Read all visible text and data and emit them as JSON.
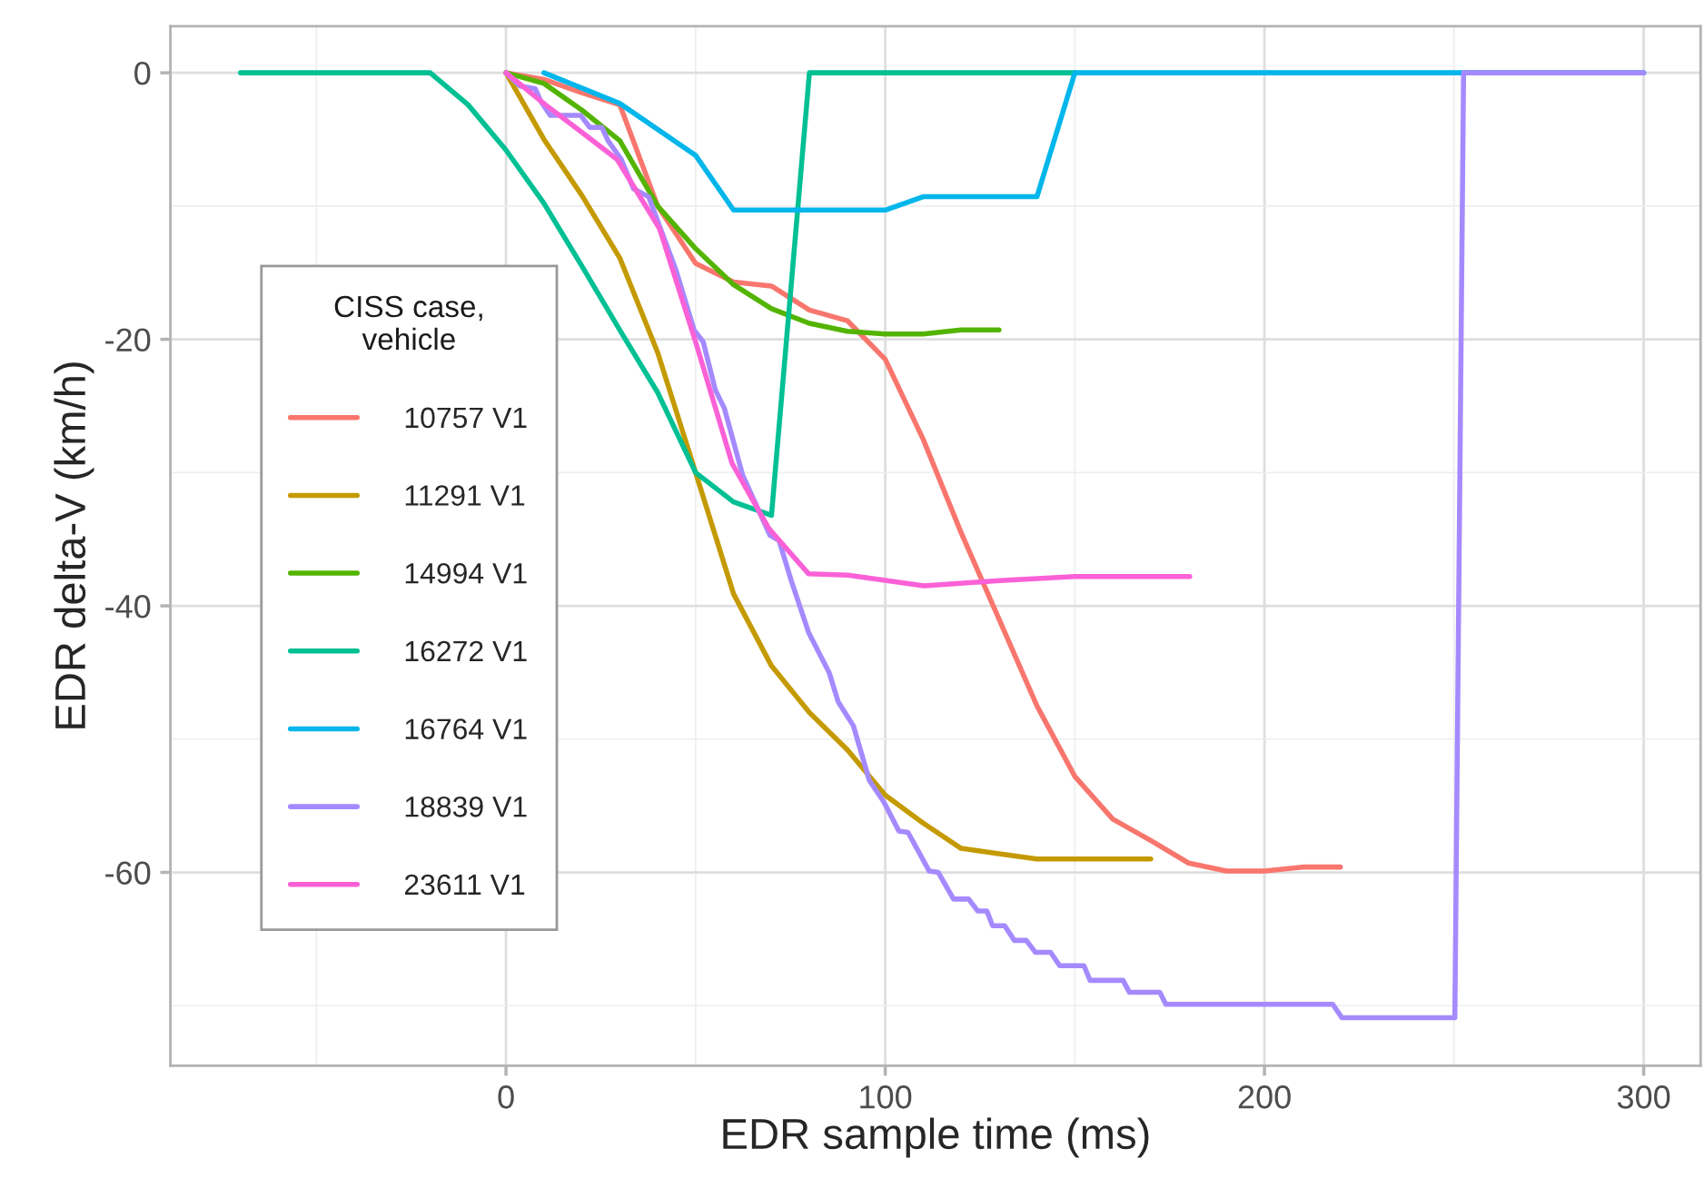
{
  "chart_data": {
    "type": "line",
    "xlabel": "EDR sample time (ms)",
    "ylabel": "EDR delta-V (km/h)",
    "legend_title": "CISS case,\nvehicle",
    "xlim": [
      -88.5,
      315
    ],
    "ylim": [
      -74.5,
      3.5
    ],
    "xticks": [
      0,
      100,
      200,
      300
    ],
    "yticks": [
      -60,
      -40,
      -20,
      0
    ],
    "grid": true,
    "legend": "left",
    "line_style": "solid",
    "marker": "none",
    "series": [
      {
        "name": "10757 V1",
        "color": "#f8766d",
        "x": [
          0,
          10,
          20,
          30,
          40,
          50,
          60,
          70,
          80,
          90,
          100,
          110,
          120,
          130,
          140,
          150,
          160,
          170,
          180,
          190,
          200,
          210,
          220
        ],
        "values": [
          0,
          -0.5,
          -1.5,
          -2.4,
          -10,
          -14.3,
          -15.7,
          -16,
          -17.8,
          -18.6,
          -21.5,
          -27.5,
          -34.5,
          -41,
          -47.5,
          -52.8,
          -56,
          -57.6,
          -59.3,
          -59.9,
          -59.9,
          -59.6,
          -59.6
        ]
      },
      {
        "name": "11291 V1",
        "color": "#c49a00",
        "x": [
          0,
          10,
          20,
          30,
          40,
          50,
          60,
          70,
          80,
          90,
          100,
          110,
          120,
          130,
          140,
          150,
          160,
          170
        ],
        "values": [
          0,
          -5,
          -9.2,
          -13.9,
          -21,
          -30,
          -39.1,
          -44.5,
          -48,
          -50.8,
          -54.2,
          -56.3,
          -58.2,
          -58.6,
          -59,
          -59,
          -59,
          -59
        ]
      },
      {
        "name": "14994 V1",
        "color": "#53b400",
        "x": [
          0,
          10,
          20,
          30,
          40,
          50,
          60,
          70,
          80,
          90,
          100,
          110,
          120,
          130
        ],
        "values": [
          0,
          -0.8,
          -2.8,
          -5.1,
          -10,
          -13.2,
          -15.9,
          -17.7,
          -18.8,
          -19.4,
          -19.6,
          -19.6,
          -19.3,
          -19.3
        ]
      },
      {
        "name": "16272 V1",
        "color": "#00c094",
        "x": [
          -70,
          -20,
          -10,
          0,
          10,
          20,
          30,
          40,
          50,
          60,
          70,
          80,
          150
        ],
        "values": [
          0,
          0,
          -2.4,
          -5.8,
          -9.8,
          -14.5,
          -19.3,
          -24,
          -30,
          -32.2,
          -33.2,
          0,
          0
        ]
      },
      {
        "name": "16764 V1",
        "color": "#00b6eb",
        "x": [
          10,
          30,
          50,
          60,
          100,
          110,
          140,
          150,
          300
        ],
        "values": [
          0,
          -2.3,
          -6.2,
          -10.3,
          -10.3,
          -9.3,
          -9.3,
          0,
          0
        ]
      },
      {
        "name": "18839 V1",
        "color": "#a58aff",
        "x": [
          0,
          3.7,
          7.7,
          9.3,
          11.7,
          19.7,
          22.1,
          25.3,
          26.9,
          30.4,
          33.6,
          37.6,
          44.8,
          49.6,
          52,
          55.2,
          57.6,
          62.4,
          69.6,
          72,
          75.2,
          79.8,
          85.2,
          87.6,
          91.6,
          95.8,
          99.6,
          103.6,
          106,
          111.6,
          114,
          118,
          122,
          124.4,
          126.8,
          128.3,
          131.5,
          134,
          137.2,
          139.6,
          143.6,
          146,
          152.4,
          154,
          162.7,
          164.4,
          172.4,
          174,
          218,
          220.4,
          250.2,
          252.5,
          300
        ],
        "values": [
          0,
          -1,
          -1.2,
          -2.2,
          -3.2,
          -3.2,
          -4.1,
          -4.1,
          -5.1,
          -6.5,
          -8.7,
          -9.3,
          -14.8,
          -19.3,
          -20.2,
          -23.8,
          -25.2,
          -30.2,
          -34.7,
          -35.1,
          -38.1,
          -42,
          -45,
          -47.2,
          -49,
          -53.1,
          -54.7,
          -56.9,
          -57,
          -59.9,
          -60,
          -62,
          -62,
          -62.9,
          -62.9,
          -64,
          -64,
          -65.1,
          -65.1,
          -66,
          -66,
          -67,
          -67,
          -68.1,
          -68.1,
          -69,
          -69,
          -69.9,
          -69.9,
          -70.9,
          -70.9,
          0,
          0
        ]
      },
      {
        "name": "23611 V1",
        "color": "#fb61d7",
        "x": [
          0,
          10.4,
          19.7,
          29.3,
          40.5,
          50,
          59.6,
          69.3,
          79.8,
          90.2,
          110.2,
          130.2,
          150,
          180.3
        ],
        "values": [
          0,
          -2.4,
          -4.4,
          -6.5,
          -11.7,
          -20.2,
          -29.3,
          -34.2,
          -37.6,
          -37.7,
          -38.5,
          -38.1,
          -37.8,
          -37.8
        ]
      }
    ]
  }
}
